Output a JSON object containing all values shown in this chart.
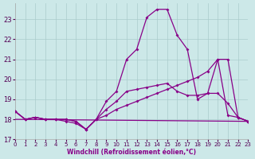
{
  "background_color": "#cce8e8",
  "grid_color": "#aacccc",
  "line_color": "#880088",
  "xlabel": "Windchill (Refroidissement éolien,°C)",
  "x_ticks": [
    0,
    1,
    2,
    3,
    4,
    5,
    6,
    7,
    8,
    9,
    10,
    11,
    12,
    13,
    14,
    15,
    16,
    17,
    18,
    19,
    20,
    21,
    22,
    23
  ],
  "y_ticks": [
    17,
    18,
    19,
    20,
    21,
    22,
    23
  ],
  "xlim": [
    0,
    23
  ],
  "ylim": [
    17.0,
    23.8
  ],
  "series_peak": {
    "x": [
      0,
      1,
      2,
      3,
      4,
      5,
      6,
      7,
      8,
      9,
      10,
      11,
      12,
      13,
      14,
      15,
      16,
      17,
      18,
      19,
      20,
      21,
      22,
      23
    ],
    "y": [
      18.4,
      18.0,
      18.1,
      18.0,
      18.0,
      18.0,
      17.9,
      17.5,
      18.0,
      18.9,
      19.4,
      21.0,
      21.5,
      23.1,
      23.5,
      23.5,
      22.2,
      21.5,
      19.0,
      19.3,
      21.0,
      18.2,
      18.1,
      17.9
    ]
  },
  "series_diag": {
    "x": [
      0,
      1,
      2,
      3,
      4,
      5,
      6,
      7,
      8,
      9,
      10,
      11,
      12,
      13,
      14,
      15,
      16,
      17,
      18,
      19,
      20,
      21,
      22,
      23
    ],
    "y": [
      18.4,
      18.0,
      18.1,
      18.0,
      18.0,
      18.0,
      17.9,
      17.5,
      18.0,
      18.2,
      18.5,
      18.7,
      18.9,
      19.1,
      19.3,
      19.5,
      19.7,
      19.9,
      20.1,
      20.4,
      21.0,
      21.0,
      18.1,
      17.9
    ]
  },
  "series_mid": {
    "x": [
      0,
      1,
      2,
      3,
      4,
      5,
      6,
      7,
      8,
      9,
      10,
      11,
      12,
      13,
      14,
      15,
      16,
      17,
      18,
      19,
      20,
      21,
      22,
      23
    ],
    "y": [
      18.4,
      18.0,
      18.1,
      18.0,
      18.0,
      17.9,
      17.8,
      17.5,
      18.0,
      18.5,
      18.9,
      19.4,
      19.5,
      19.6,
      19.7,
      19.8,
      19.4,
      19.2,
      19.2,
      19.3,
      19.3,
      18.8,
      18.1,
      17.9
    ]
  },
  "series_flat": {
    "x": [
      0,
      23
    ],
    "y": [
      18.0,
      17.9
    ]
  }
}
